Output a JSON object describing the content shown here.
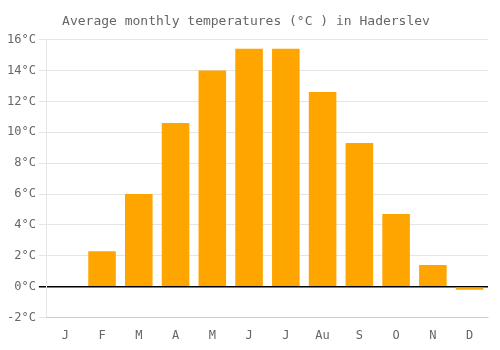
{
  "chart_data": {
    "type": "bar",
    "title": "Average monthly temperatures (°C ) in Haderslev",
    "categories": [
      "J",
      "F",
      "M",
      "A",
      "M",
      "J",
      "J",
      "Au",
      "S",
      "O",
      "N",
      "D"
    ],
    "values": [
      0.0,
      2.3,
      6.0,
      10.6,
      14.0,
      15.4,
      15.4,
      12.6,
      9.3,
      4.7,
      1.4,
      -0.2
    ],
    "color": "#FFA500",
    "ylim": [
      -2,
      16
    ],
    "yticks": [
      {
        "value": -2,
        "label": "-2°C"
      },
      {
        "value": 0,
        "label": "0°C"
      },
      {
        "value": 2,
        "label": "2°C"
      },
      {
        "value": 4,
        "label": "4°C"
      },
      {
        "value": 6,
        "label": "6°C"
      },
      {
        "value": 8,
        "label": "8°C"
      },
      {
        "value": 10,
        "label": "10°C"
      },
      {
        "value": 12,
        "label": "12°C"
      },
      {
        "value": 14,
        "label": "14°C"
      },
      {
        "value": 16,
        "label": "16°C"
      }
    ],
    "grid": true
  }
}
